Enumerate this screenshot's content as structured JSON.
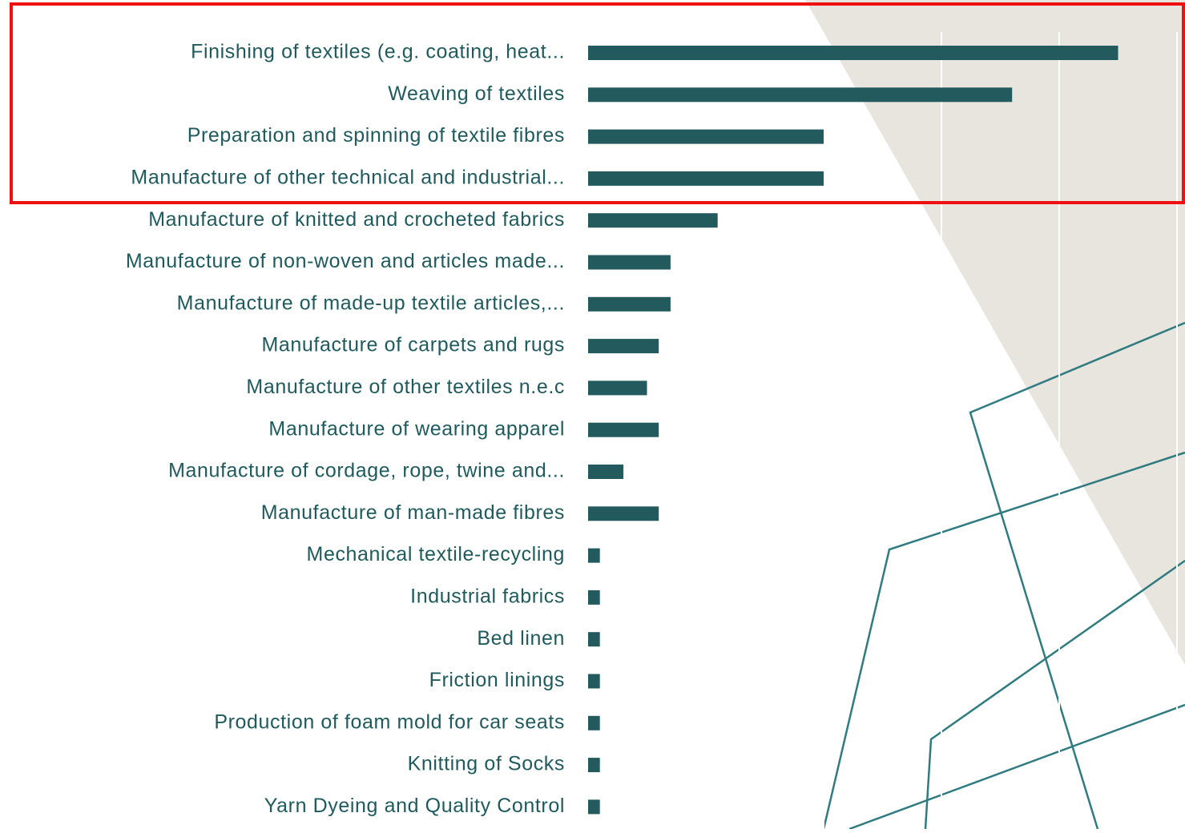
{
  "chart_data": {
    "type": "barh",
    "categories": [
      "Finishing of textiles (e.g. coating, heat...",
      "Weaving of textiles",
      "Preparation and spinning of textile fibres",
      "Manufacture of other technical and industrial...",
      "Manufacture of knitted and crocheted fabrics",
      "Manufacture of non-woven and articles made...",
      "Manufacture of made-up textile articles,...",
      "Manufacture of carpets and rugs",
      "Manufacture of other textiles n.e.c",
      "Manufacture of wearing apparel",
      "Manufacture of cordage, rope, twine and...",
      "Manufacture of man-made fibres",
      "Mechanical textile-recycling",
      "Industrial fabrics",
      "Bed linen",
      "Friction linings",
      "Production of foam mold for car seats",
      "Knitting of Socks",
      "Yarn Dyeing and Quality Control"
    ],
    "values": [
      45,
      36,
      20,
      20,
      11,
      7,
      7,
      6,
      5,
      6,
      3,
      6,
      1,
      1,
      1,
      1,
      1,
      1,
      1
    ],
    "color": "#235a5e",
    "xlim": [
      0,
      50
    ],
    "xticks": [
      0,
      10,
      20,
      30,
      40,
      50
    ],
    "grid": true
  }
}
